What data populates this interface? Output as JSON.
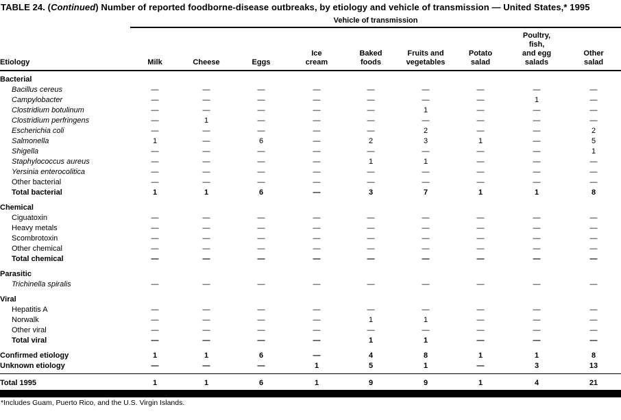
{
  "title": {
    "part1": "TABLE 24. (",
    "part2": "Continued",
    "part3": ") Number of reported foodborne-disease outbreaks, by etiology and vehicle of transmission — United States,* 1995"
  },
  "footnote": "*Includes Guam, Puerto Rico, and the U.S. Virgin Islands.",
  "table": {
    "group_header": "Vehicle of transmission",
    "columns": [
      {
        "label": "Etiology",
        "lines": [
          "Etiology"
        ]
      },
      {
        "label": "Milk",
        "lines": [
          "Milk"
        ]
      },
      {
        "label": "Cheese",
        "lines": [
          "Cheese"
        ]
      },
      {
        "label": "Eggs",
        "lines": [
          "Eggs"
        ]
      },
      {
        "label": "Ice cream",
        "lines": [
          "Ice",
          "cream"
        ]
      },
      {
        "label": "Baked foods",
        "lines": [
          "Baked",
          "foods"
        ]
      },
      {
        "label": "Fruits and vegetables",
        "lines": [
          "Fruits and",
          "vegetables"
        ]
      },
      {
        "label": "Potato salad",
        "lines": [
          "Potato",
          "salad"
        ]
      },
      {
        "label": "Poultry, fish, and egg salads",
        "lines": [
          "Poultry,",
          "fish,",
          "and egg",
          "salads"
        ]
      },
      {
        "label": "Other salad",
        "lines": [
          "Other",
          "salad"
        ]
      }
    ],
    "rows": [
      {
        "label": "Bacterial",
        "style": "section",
        "values": []
      },
      {
        "label": "Bacillus cereus",
        "style": "species",
        "values": [
          "—",
          "—",
          "—",
          "—",
          "—",
          "—",
          "—",
          "—",
          "—"
        ]
      },
      {
        "label": "Campylobacter",
        "style": "species",
        "values": [
          "—",
          "—",
          "—",
          "—",
          "—",
          "—",
          "—",
          "1",
          "—"
        ]
      },
      {
        "label": "Clostridium botulinum",
        "style": "species",
        "values": [
          "—",
          "—",
          "—",
          "—",
          "—",
          "1",
          "—",
          "—",
          "—"
        ]
      },
      {
        "label": "Clostridium perfringens",
        "style": "species",
        "values": [
          "—",
          "1",
          "—",
          "—",
          "—",
          "—",
          "—",
          "—",
          "—"
        ]
      },
      {
        "label": "Escherichia coli",
        "style": "species",
        "values": [
          "—",
          "—",
          "—",
          "—",
          "—",
          "2",
          "—",
          "—",
          "2"
        ]
      },
      {
        "label": "Salmonella",
        "style": "species",
        "values": [
          "1",
          "—",
          "6",
          "—",
          "2",
          "3",
          "1",
          "—",
          "5"
        ]
      },
      {
        "label": "Shigella",
        "style": "species",
        "values": [
          "—",
          "—",
          "—",
          "—",
          "—",
          "—",
          "—",
          "—",
          "1"
        ]
      },
      {
        "label": "Staphylococcus aureus",
        "style": "species",
        "values": [
          "—",
          "—",
          "—",
          "—",
          "1",
          "1",
          "—",
          "—",
          "—"
        ]
      },
      {
        "label": "Yersinia enterocolitica",
        "style": "species",
        "values": [
          "—",
          "—",
          "—",
          "—",
          "—",
          "—",
          "—",
          "—",
          "—"
        ]
      },
      {
        "label": "Other bacterial",
        "style": "plain",
        "values": [
          "—",
          "—",
          "—",
          "—",
          "—",
          "—",
          "—",
          "—",
          "—"
        ]
      },
      {
        "label": "Total bacterial",
        "style": "total",
        "values": [
          "1",
          "1",
          "6",
          "—",
          "3",
          "7",
          "1",
          "1",
          "8"
        ]
      },
      {
        "label": "Chemical",
        "style": "section",
        "gap": true,
        "values": []
      },
      {
        "label": "Ciguatoxin",
        "style": "plain",
        "values": [
          "—",
          "—",
          "—",
          "—",
          "—",
          "—",
          "—",
          "—",
          "—"
        ]
      },
      {
        "label": "Heavy metals",
        "style": "plain",
        "values": [
          "—",
          "—",
          "—",
          "—",
          "—",
          "—",
          "—",
          "—",
          "—"
        ]
      },
      {
        "label": "Scombrotoxin",
        "style": "plain",
        "values": [
          "—",
          "—",
          "—",
          "—",
          "—",
          "—",
          "—",
          "—",
          "—"
        ]
      },
      {
        "label": "Other chemical",
        "style": "plain",
        "values": [
          "—",
          "—",
          "—",
          "—",
          "—",
          "—",
          "—",
          "—",
          "—"
        ]
      },
      {
        "label": "Total chemical",
        "style": "total",
        "values": [
          "—",
          "—",
          "—",
          "—",
          "—",
          "—",
          "—",
          "—",
          "—"
        ]
      },
      {
        "label": "Parasitic",
        "style": "section",
        "gap": true,
        "values": []
      },
      {
        "label": "Trichinella spiralis",
        "style": "species",
        "values": [
          "—",
          "—",
          "—",
          "—",
          "—",
          "—",
          "—",
          "—",
          "—"
        ]
      },
      {
        "label": "Viral",
        "style": "section",
        "gap": true,
        "values": []
      },
      {
        "label": "Hepatitis A",
        "style": "plain",
        "values": [
          "—",
          "—",
          "—",
          "—",
          "—",
          "—",
          "—",
          "—",
          "—"
        ]
      },
      {
        "label": "Norwalk",
        "style": "plain",
        "values": [
          "—",
          "—",
          "—",
          "—",
          "1",
          "1",
          "—",
          "—",
          "—"
        ]
      },
      {
        "label": "Other viral",
        "style": "plain",
        "values": [
          "—",
          "—",
          "—",
          "—",
          "—",
          "—",
          "—",
          "—",
          "—"
        ]
      },
      {
        "label": "Total viral",
        "style": "total",
        "values": [
          "—",
          "—",
          "—",
          "—",
          "1",
          "1",
          "—",
          "—",
          "—"
        ]
      },
      {
        "label": "Confirmed etiology",
        "style": "summary",
        "gap": true,
        "values": [
          "1",
          "1",
          "6",
          "—",
          "4",
          "8",
          "1",
          "1",
          "8"
        ]
      },
      {
        "label": "Unknown etiology",
        "style": "summary",
        "padb": true,
        "values": [
          "—",
          "—",
          "—",
          "1",
          "5",
          "1",
          "—",
          "3",
          "13"
        ]
      },
      {
        "label": "Total 1995",
        "style": "grand",
        "values": [
          "1",
          "1",
          "6",
          "1",
          "9",
          "9",
          "1",
          "4",
          "21"
        ]
      }
    ]
  }
}
